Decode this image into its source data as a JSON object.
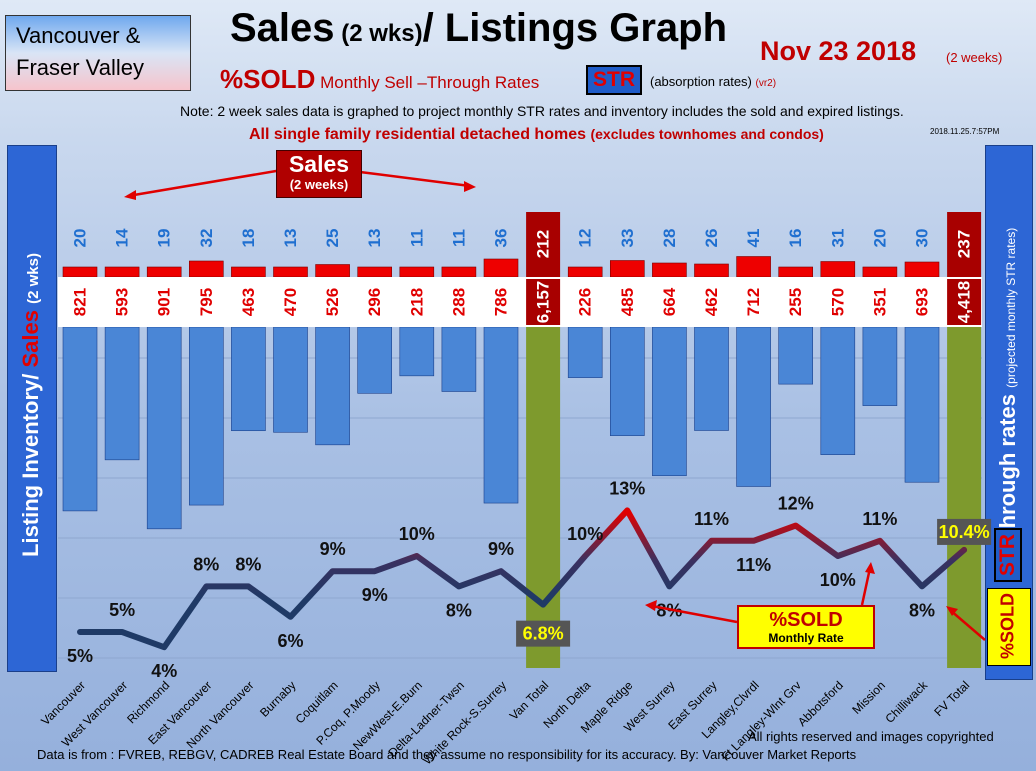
{
  "header": {
    "brand_line1": "Vancouver &",
    "brand_line2": "Fraser Valley",
    "title_main": "Sales",
    "title_small": " (2 wks)",
    "title_rest": "/ Listings Graph",
    "date": "Nov 23 2018",
    "date_sub": "(2 weeks)",
    "subtitle_sold": "%SOLD",
    "subtitle_text": "Monthly Sell –Through Rates",
    "str_badge": "STR",
    "absorption": "(absorption rates)",
    "version": "(vr2)",
    "note": "Note: 2 week sales data is graphed to project monthly STR rates and inventory includes the sold and expired listings.",
    "note2_main": "All single family residential detached homes",
    "note2_small": "(excludes townhomes and condos)",
    "stamp": "2018.11.25.7:57PM"
  },
  "left_axis": {
    "inventory": "Listing Inventory/",
    "sales": "Sales",
    "wks": "(2 wks)"
  },
  "right_axis": {
    "main": "Sell-through rates",
    "sub": "(projected monthly STR rates)",
    "str": "STR",
    "sold": "%SOLD"
  },
  "callouts": {
    "sales_t1": "Sales",
    "sales_t2": "(2 weeks)",
    "sold_t1": "%SOLD",
    "sold_t2": "Monthly Rate"
  },
  "footer": {
    "source": "Data is from : FVREB, REBGV, CADREB Real Estate Board and they assume no responsibility for its accuracy. By: Vancouver Market Reports",
    "rights": "All rights reserved and  images copyrighted"
  },
  "colors": {
    "sales_bar": "#ee0000",
    "total_sales_bar": "#a80000",
    "inventory_bar": "#4a86d6",
    "total_bar": "#7e9a2d",
    "line_low": "#1f3a66",
    "line_high": "#e00000"
  },
  "chart_data": {
    "type": "bar",
    "categories": [
      "Vancouver",
      "West Vancouver",
      "Richmond",
      "East Vancouver",
      "North Vancouver",
      "Burnaby",
      "Coquitlam",
      "P.Coq, P.Moody",
      "NewWest-E.Burn",
      "Delta-Ladner-Twsn",
      "White Rock-S.Surrey",
      "Van Total",
      "North Delta",
      "Maple Ridge",
      "West Surrey",
      "East Surrey",
      "Langley,Clvrdl",
      "Ft Langley-Wlnt Grv",
      "Abbotsford",
      "Mission",
      "Chilliwack",
      "FV Total"
    ],
    "series": [
      {
        "values": [
          20,
          14,
          19,
          32,
          18,
          13,
          25,
          13,
          11,
          11,
          36,
          212,
          12,
          33,
          28,
          26,
          41,
          16,
          31,
          20,
          30,
          237
        ]
      },
      {
        "values": [
          821,
          593,
          901,
          795,
          463,
          470,
          526,
          296,
          218,
          288,
          786,
          6157,
          226,
          485,
          664,
          462,
          712,
          255,
          570,
          351,
          693,
          4418
        ]
      },
      {
        "values": [
          5,
          5,
          4,
          8,
          8,
          6,
          9,
          9,
          10,
          8,
          9,
          6.8,
          10,
          13,
          8,
          11,
          11,
          12,
          10,
          11,
          8,
          10.4
        ]
      }
    ],
    "sales_labels": [
      "20",
      "14",
      "19",
      "32",
      "18",
      "13",
      "25",
      "13",
      "11",
      "11",
      "36",
      "212",
      "12",
      "33",
      "28",
      "26",
      "41",
      "16",
      "31",
      "20",
      "30",
      "237"
    ],
    "inventory_labels": [
      "821",
      "593",
      "901",
      "795",
      "463",
      "470",
      "526",
      "296",
      "218",
      "288",
      "786",
      "6,157",
      "226",
      "485",
      "664",
      "462",
      "712",
      "255",
      "570",
      "351",
      "693",
      "4,418"
    ],
    "str_labels": [
      "5%",
      "5%",
      "4%",
      "8%",
      "8%",
      "6%",
      "9%",
      "9%",
      "10%",
      "8%",
      "9%",
      "6.8%",
      "10%",
      "13%",
      "8%",
      "11%",
      "11%",
      "12%",
      "10%",
      "11%",
      "8%",
      "10.4%"
    ],
    "total_indices": [
      11,
      21
    ]
  }
}
